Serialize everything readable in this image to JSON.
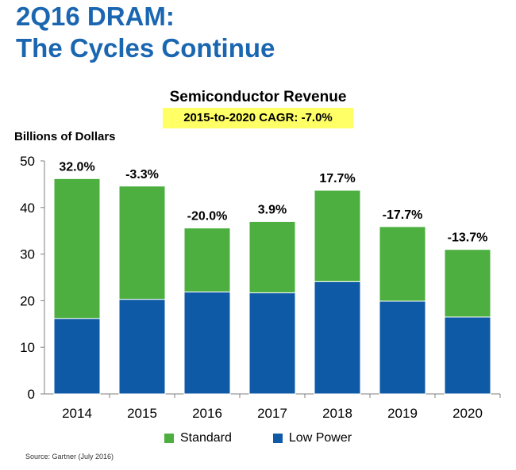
{
  "header": {
    "title_line1": "2Q16 DRAM:",
    "title_line2": "The Cycles Continue"
  },
  "source": "Source: Gartner (July 2016)",
  "chart_data": {
    "type": "bar",
    "stacked": true,
    "title": "Semiconductor Revenue",
    "subtitle": "2015-to-2020 CAGR: -7.0%",
    "ylabel": "Billions  of Dollars",
    "xlabel": "",
    "ylim": [
      0,
      50
    ],
    "yticks": [
      0,
      10,
      20,
      30,
      40,
      50
    ],
    "categories": [
      "2014",
      "2015",
      "2016",
      "2017",
      "2018",
      "2019",
      "2020"
    ],
    "series": [
      {
        "name": "Low Power",
        "color": "#0e5aa7",
        "values": [
          16.2,
          20.3,
          21.9,
          21.7,
          24.1,
          19.9,
          16.5
        ]
      },
      {
        "name": "Standard",
        "color": "#4caf3f",
        "values": [
          30.0,
          24.3,
          13.7,
          15.3,
          19.6,
          16.0,
          14.5
        ]
      }
    ],
    "growth_labels": [
      "32.0%",
      "-3.3%",
      "-20.0%",
      "3.9%",
      "17.7%",
      "-17.7%",
      "-13.7%"
    ],
    "legend": [
      "Standard",
      "Low Power"
    ],
    "legend_position": "bottom"
  }
}
